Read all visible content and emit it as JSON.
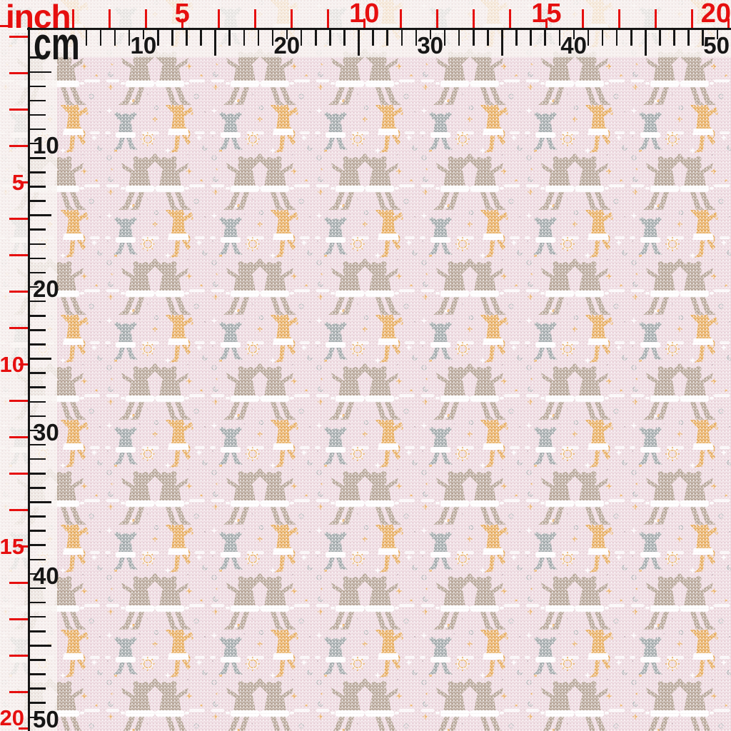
{
  "rulers": {
    "inch_unit_label": "inch",
    "cm_unit_label": "cm",
    "inch_numbers": [
      "5",
      "10",
      "15",
      "20"
    ],
    "cm_numbers": [
      "10",
      "20",
      "30",
      "40",
      "50"
    ],
    "inch_color": "#e60f0f",
    "cm_color": "#161616"
  },
  "fabric": {
    "print_background_color": "#ecd6dd",
    "selvage_color": "#f8f3ef",
    "tutu_color": "#ffffff",
    "motifs": [
      {
        "name": "dancing-bear-couple",
        "color": "#b2a091"
      },
      {
        "name": "cat-ballerina",
        "color": "#9ba4a6"
      },
      {
        "name": "fox-ballerina",
        "color": "#e7a854"
      },
      {
        "name": "sun-sparkle",
        "color": "#e9ab55"
      },
      {
        "name": "dot-confetti",
        "color": "#ecb060"
      },
      {
        "name": "swirl-confetti",
        "color": "#a9b2b4"
      }
    ]
  }
}
